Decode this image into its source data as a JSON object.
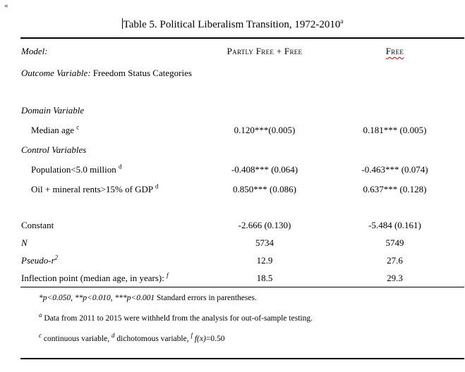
{
  "document": {
    "formatting_mark": "«",
    "title": {
      "text": "Table 5.  Political Liberalism Transition, 1972-2010",
      "sup": "a"
    }
  },
  "table": {
    "header": {
      "model_label": "Model:",
      "col1": "Partly Free + Free",
      "col2": "Free"
    },
    "outcome": {
      "label": "Outcome Variable:",
      "value": "Freedom Status Categories"
    },
    "rows": [
      {
        "label": "Domain Variable",
        "sup": "",
        "col1": "",
        "col2": ""
      },
      {
        "label": "Median age ",
        "sup": "c",
        "col1": "0.120***(0.005)",
        "col2": "0.181*** (0.005)"
      },
      {
        "label": "Control Variables",
        "sup": "",
        "col1": "",
        "col2": ""
      },
      {
        "label": "Population<5.0 million ",
        "sup": "d",
        "col1": "-0.408*** (0.064)",
        "col2": "-0.463*** (0.074)"
      },
      {
        "label": "Oil + mineral rents>15% of GDP ",
        "sup": "d",
        "col1": "0.850*** (0.086)",
        "col2": "0.637*** (0.128)"
      },
      {
        "label": "Constant",
        "sup": "",
        "col1": "-2.666 (0.130)",
        "col2": "-5.484 (0.161)"
      },
      {
        "label": "N",
        "sup": "",
        "col1": "5734",
        "col2": "5749"
      },
      {
        "label": "Pseudo-r",
        "sup": "2",
        "col1": "12.9",
        "col2": "27.6"
      },
      {
        "label": "Inflection point (median age, in years): ",
        "sup": "f",
        "col1": "18.5",
        "col2": "29.3"
      }
    ]
  },
  "footnotes": {
    "line1": {
      "italic": "*p<0.050, **p<0.010, ***p<0.001",
      "roman": " Standard errors in parentheses."
    },
    "line2": {
      "sup": "a",
      "text": " Data from 2011 to 2015 were withheld from the analysis for out-of-sample testing."
    },
    "line3": {
      "sup1": "c",
      "text1": " continuous variable, ",
      "sup2": "d",
      "text2": " dichotomous variable, ",
      "sup3": "f",
      "text3": " f(x)",
      "text4": "=0.50"
    }
  }
}
